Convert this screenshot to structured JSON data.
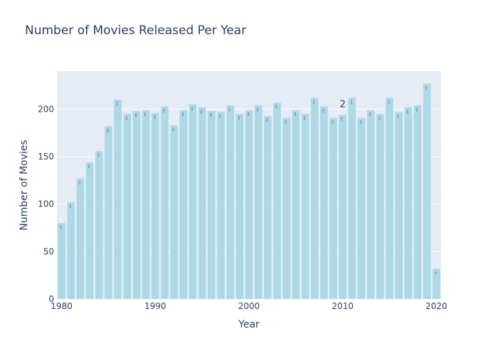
{
  "chart_data": {
    "type": "bar",
    "title": "Number of Movies Released Per Year",
    "xlabel": "Year",
    "ylabel": "Number of Movies",
    "x": [
      1980,
      1981,
      1982,
      1983,
      1984,
      1985,
      1986,
      1987,
      1988,
      1989,
      1990,
      1991,
      1992,
      1993,
      1994,
      1995,
      1996,
      1997,
      1998,
      1999,
      2000,
      2001,
      2002,
      2003,
      2004,
      2005,
      2006,
      2007,
      2008,
      2009,
      2010,
      2011,
      2012,
      2013,
      2014,
      2015,
      2016,
      2017,
      2018,
      2019,
      2020
    ],
    "values": [
      80,
      102,
      127,
      144,
      156,
      182,
      210,
      195,
      198,
      199,
      196,
      203,
      183,
      199,
      205,
      202,
      198,
      197,
      204,
      195,
      199,
      204,
      193,
      207,
      191,
      199,
      195,
      212,
      203,
      191,
      194,
      212,
      191,
      199,
      195,
      212,
      197,
      202,
      204,
      227,
      32
    ],
    "bar_labels": [
      "80",
      "102",
      "127",
      "144",
      "156",
      "182",
      "210",
      "195",
      "198",
      "199",
      "196",
      "203",
      "183",
      "199",
      "205",
      "202",
      "198",
      "197",
      "204",
      "195",
      "199",
      "204",
      "193",
      "207",
      "191",
      "199",
      "195",
      "212",
      "203",
      "191",
      "194",
      "212",
      "191",
      "199",
      "195",
      "212",
      "197",
      "202",
      "204",
      "227",
      "32"
    ],
    "xlim": [
      1979.5,
      2020.5
    ],
    "ylim": [
      0,
      240
    ],
    "x_ticks": [
      1980,
      1990,
      2000,
      2010,
      2020
    ],
    "y_ticks": [
      0,
      50,
      100,
      150,
      200
    ],
    "annotation": {
      "text": "2",
      "x": 2010,
      "y": 202
    },
    "grid": true,
    "legend": "none",
    "colors": {
      "bar": "#add8e6",
      "plot_bg": "#e5ecf6",
      "grid": "#ffffff",
      "text": "#2a3f5f"
    }
  }
}
